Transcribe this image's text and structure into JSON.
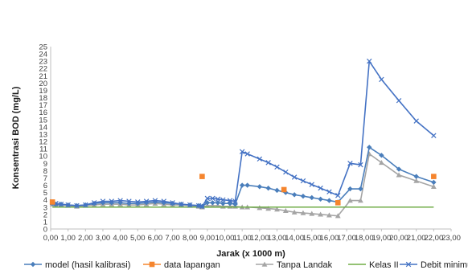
{
  "chart_data": {
    "type": "line",
    "title": "",
    "xlabel": "Jarak  (x 1000 m)",
    "ylabel": "Konsentrasi  BOD (mg/L)",
    "xlim": [
      0,
      23
    ],
    "ylim": [
      0,
      25
    ],
    "x_ticks": [
      "0,00",
      "1,00",
      "2,00",
      "3,00",
      "4,00",
      "5,00",
      "6,00",
      "7,00",
      "8,00",
      "9,00",
      "10,00",
      "11,00",
      "12,00",
      "13,00",
      "14,00",
      "15,00",
      "16,00",
      "17,00",
      "18,00",
      "19,00",
      "20,00",
      "21,00",
      "22,00",
      "23,00"
    ],
    "y_ticks": [
      "0",
      "1",
      "2",
      "3",
      "4",
      "5",
      "6",
      "7",
      "8",
      "9",
      "10",
      "11",
      "12",
      "13",
      "14",
      "15",
      "16",
      "17",
      "18",
      "19",
      "20",
      "21",
      "22",
      "23",
      "24",
      "25"
    ],
    "grid": false,
    "legend_position": "bottom",
    "series": [
      {
        "name": "model (hasil kalibrasi)",
        "color": "#4a7ebb",
        "marker": "diamond",
        "x": [
          0.1,
          0.3,
          0.6,
          1.0,
          1.5,
          2.0,
          2.5,
          3.0,
          3.5,
          4.0,
          4.5,
          5.0,
          5.5,
          6.0,
          6.5,
          7.0,
          7.5,
          8.0,
          8.5,
          8.7,
          9.0,
          9.3,
          9.6,
          9.9,
          10.3,
          10.6,
          11.0,
          11.3,
          12.0,
          12.5,
          13.0,
          13.5,
          14.0,
          14.5,
          15.0,
          15.5,
          16.0,
          16.5,
          17.2,
          17.8,
          18.3,
          19.0,
          20.0,
          21.0,
          22.0
        ],
        "y": [
          3.5,
          3.4,
          3.4,
          3.3,
          3.2,
          3.3,
          3.5,
          3.6,
          3.6,
          3.6,
          3.5,
          3.5,
          3.6,
          3.7,
          3.6,
          3.5,
          3.4,
          3.3,
          3.2,
          3.1,
          3.6,
          3.6,
          3.6,
          3.5,
          3.5,
          3.4,
          6.0,
          6.0,
          5.8,
          5.6,
          5.3,
          5.0,
          4.7,
          4.5,
          4.3,
          4.1,
          3.9,
          3.7,
          5.5,
          5.5,
          11.2,
          10.1,
          8.2,
          7.2,
          6.4
        ]
      },
      {
        "name": "data lapangan",
        "color": "#f5852e",
        "marker": "square",
        "x": [
          0.1,
          8.7,
          13.4,
          16.5,
          22.0
        ],
        "y": [
          3.7,
          7.2,
          5.4,
          3.6,
          7.2
        ]
      },
      {
        "name": "Tanpa Landak",
        "color": "#a5a5a5",
        "marker": "triangle",
        "x": [
          0.1,
          0.3,
          0.6,
          1.0,
          1.5,
          2.0,
          2.5,
          3.0,
          3.5,
          4.0,
          4.5,
          5.0,
          5.5,
          6.0,
          6.5,
          7.0,
          7.5,
          8.0,
          8.5,
          8.7,
          9.0,
          9.3,
          9.6,
          9.9,
          10.3,
          10.6,
          11.0,
          11.3,
          12.0,
          12.5,
          13.0,
          13.5,
          14.0,
          14.5,
          15.0,
          15.5,
          16.0,
          16.5,
          17.2,
          17.8,
          18.3,
          19.0,
          20.0,
          21.0,
          22.0
        ],
        "y": [
          3.4,
          3.3,
          3.3,
          3.2,
          3.1,
          3.2,
          3.3,
          3.4,
          3.4,
          3.4,
          3.3,
          3.3,
          3.4,
          3.5,
          3.4,
          3.3,
          3.3,
          3.2,
          3.1,
          3.0,
          3.2,
          3.2,
          3.2,
          3.1,
          3.1,
          3.1,
          3.0,
          3.0,
          2.9,
          2.8,
          2.7,
          2.5,
          2.3,
          2.2,
          2.1,
          2.0,
          1.9,
          1.8,
          3.9,
          3.9,
          10.3,
          9.1,
          7.4,
          6.6,
          5.8
        ]
      },
      {
        "name": "Kelas II",
        "color": "#70ad47",
        "marker": "none",
        "x": [
          0.1,
          22.0
        ],
        "y": [
          3.0,
          3.0
        ]
      },
      {
        "name": "Debit minimum",
        "color": "#4472c4",
        "marker": "x",
        "x": [
          0.1,
          0.3,
          0.6,
          1.0,
          1.5,
          2.0,
          2.5,
          3.0,
          3.5,
          4.0,
          4.5,
          5.0,
          5.5,
          6.0,
          6.5,
          7.0,
          7.5,
          8.0,
          8.5,
          8.7,
          9.0,
          9.3,
          9.6,
          9.9,
          10.3,
          10.6,
          11.0,
          11.3,
          12.0,
          12.5,
          13.0,
          13.5,
          14.0,
          14.5,
          15.0,
          15.5,
          16.0,
          16.5,
          17.2,
          17.8,
          18.3,
          19.0,
          20.0,
          21.0,
          22.0
        ],
        "y": [
          3.6,
          3.5,
          3.4,
          3.3,
          3.2,
          3.3,
          3.6,
          3.8,
          3.8,
          3.9,
          3.8,
          3.7,
          3.8,
          3.9,
          3.8,
          3.6,
          3.4,
          3.3,
          3.2,
          3.1,
          4.2,
          4.2,
          4.1,
          4.0,
          3.9,
          3.8,
          10.6,
          10.3,
          9.6,
          9.1,
          8.5,
          7.8,
          7.1,
          6.6,
          6.1,
          5.6,
          5.1,
          4.6,
          9.0,
          8.8,
          23.0,
          20.5,
          17.6,
          14.8,
          12.8
        ]
      }
    ]
  }
}
